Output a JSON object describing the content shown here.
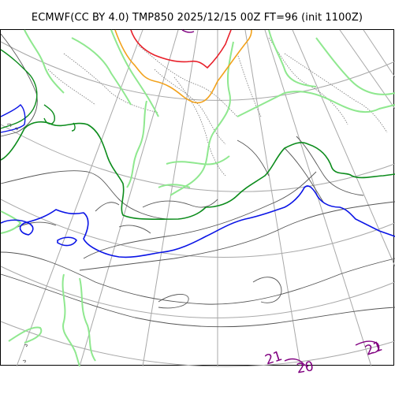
{
  "header": {
    "title": "ECMWF(CC BY 4.0) TMP850 2025/12/15 00Z FT=96 (init 1100Z)"
  },
  "map": {
    "contour_labels": [
      "21",
      "20",
      "21"
    ],
    "colors": {
      "red_isotherm": "#e8202a",
      "orange_isotherm": "#f2a21c",
      "green_isotherm": "#0c8c1c",
      "blue_isotherm": "#0a14e6",
      "light_green": "#8fe88f",
      "purple_label": "#800080",
      "graticule": "#a8a8a8",
      "coastline": "#555555",
      "coastline_dotted": "#777777"
    }
  }
}
